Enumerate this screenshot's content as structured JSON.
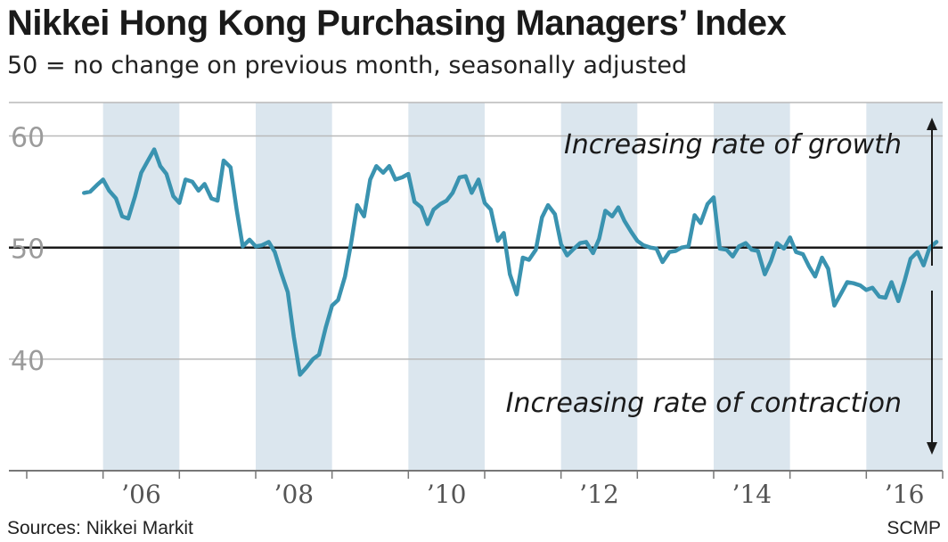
{
  "chart_data": {
    "type": "line",
    "title": "Nikkei Hong Kong Purchasing Managers’ Index",
    "subtitle": "50 = no change on previous month, seasonally adjusted",
    "xlabel": "",
    "ylabel": "",
    "ylim": [
      30,
      63
    ],
    "xlim": [
      2005.0,
      2017.0
    ],
    "y_ticks": [
      60,
      50,
      40
    ],
    "y_tick_labels": [
      "60",
      "50",
      "40"
    ],
    "x_ticks": [
      2006,
      2008,
      2010,
      2012,
      2014,
      2016
    ],
    "x_tick_labels": [
      "’06",
      "’08",
      "’10",
      "’12",
      "’14",
      "’16"
    ],
    "reference_line": 50,
    "shaded_years": [
      2006,
      2008,
      2010,
      2012,
      2014,
      2016
    ],
    "annotations": {
      "growth": "Increasing rate of growth",
      "contraction": "Increasing rate of contraction"
    },
    "colors": {
      "line": "#3a93b0",
      "band": "#dbe6ee",
      "grid": "#b9b9b9",
      "reference": "#1a1a1a",
      "axis": "#777777"
    },
    "series": [
      {
        "name": "Nikkei Hong Kong PMI",
        "points": [
          [
            2005.75,
            54.9
          ],
          [
            2005.83,
            55.0
          ],
          [
            2005.92,
            55.6
          ],
          [
            2006.0,
            56.1
          ],
          [
            2006.08,
            55.1
          ],
          [
            2006.17,
            54.4
          ],
          [
            2006.25,
            52.8
          ],
          [
            2006.33,
            52.6
          ],
          [
            2006.42,
            54.6
          ],
          [
            2006.5,
            56.7
          ],
          [
            2006.58,
            57.7
          ],
          [
            2006.67,
            58.8
          ],
          [
            2006.75,
            57.3
          ],
          [
            2006.83,
            56.6
          ],
          [
            2006.92,
            54.6
          ],
          [
            2007.0,
            54.0
          ],
          [
            2007.08,
            56.1
          ],
          [
            2007.17,
            55.9
          ],
          [
            2007.25,
            55.1
          ],
          [
            2007.33,
            55.7
          ],
          [
            2007.42,
            54.4
          ],
          [
            2007.5,
            54.2
          ],
          [
            2007.58,
            57.8
          ],
          [
            2007.67,
            57.2
          ],
          [
            2007.75,
            53.4
          ],
          [
            2007.83,
            50.1
          ],
          [
            2007.92,
            50.7
          ],
          [
            2008.0,
            50.1
          ],
          [
            2008.08,
            50.2
          ],
          [
            2008.17,
            50.5
          ],
          [
            2008.25,
            49.6
          ],
          [
            2008.33,
            47.8
          ],
          [
            2008.42,
            46.0
          ],
          [
            2008.5,
            42.0
          ],
          [
            2008.58,
            38.6
          ],
          [
            2008.67,
            39.3
          ],
          [
            2008.75,
            40.0
          ],
          [
            2008.83,
            40.4
          ],
          [
            2008.92,
            42.9
          ],
          [
            2009.0,
            44.8
          ],
          [
            2009.08,
            45.3
          ],
          [
            2009.17,
            47.4
          ],
          [
            2009.25,
            50.4
          ],
          [
            2009.33,
            53.8
          ],
          [
            2009.42,
            52.8
          ],
          [
            2009.5,
            56.1
          ],
          [
            2009.58,
            57.3
          ],
          [
            2009.67,
            56.7
          ],
          [
            2009.75,
            57.3
          ],
          [
            2009.83,
            56.1
          ],
          [
            2009.92,
            56.3
          ],
          [
            2010.0,
            56.6
          ],
          [
            2010.08,
            54.1
          ],
          [
            2010.17,
            53.6
          ],
          [
            2010.25,
            52.1
          ],
          [
            2010.33,
            53.4
          ],
          [
            2010.42,
            53.9
          ],
          [
            2010.5,
            54.2
          ],
          [
            2010.58,
            54.9
          ],
          [
            2010.67,
            56.3
          ],
          [
            2010.75,
            56.4
          ],
          [
            2010.83,
            54.9
          ],
          [
            2010.92,
            56.1
          ],
          [
            2011.0,
            54.0
          ],
          [
            2011.08,
            53.4
          ],
          [
            2011.17,
            50.6
          ],
          [
            2011.25,
            51.3
          ],
          [
            2011.33,
            47.6
          ],
          [
            2011.42,
            45.8
          ],
          [
            2011.5,
            49.1
          ],
          [
            2011.58,
            48.9
          ],
          [
            2011.67,
            49.8
          ],
          [
            2011.75,
            52.7
          ],
          [
            2011.83,
            53.8
          ],
          [
            2011.92,
            53.0
          ],
          [
            2012.0,
            50.3
          ],
          [
            2012.08,
            49.3
          ],
          [
            2012.17,
            49.9
          ],
          [
            2012.25,
            50.4
          ],
          [
            2012.33,
            50.5
          ],
          [
            2012.42,
            49.5
          ],
          [
            2012.5,
            50.8
          ],
          [
            2012.58,
            53.3
          ],
          [
            2012.67,
            52.8
          ],
          [
            2012.75,
            53.6
          ],
          [
            2012.83,
            52.4
          ],
          [
            2012.92,
            51.4
          ],
          [
            2013.0,
            50.6
          ],
          [
            2013.08,
            50.2
          ],
          [
            2013.17,
            50.0
          ],
          [
            2013.25,
            49.9
          ],
          [
            2013.33,
            48.7
          ],
          [
            2013.42,
            49.6
          ],
          [
            2013.5,
            49.7
          ],
          [
            2013.58,
            50.0
          ],
          [
            2013.67,
            50.1
          ],
          [
            2013.75,
            52.9
          ],
          [
            2013.83,
            52.2
          ],
          [
            2013.92,
            53.9
          ],
          [
            2014.0,
            54.5
          ],
          [
            2014.08,
            49.9
          ],
          [
            2014.17,
            49.8
          ],
          [
            2014.25,
            49.2
          ],
          [
            2014.33,
            50.1
          ],
          [
            2014.42,
            50.4
          ],
          [
            2014.5,
            49.8
          ],
          [
            2014.58,
            49.7
          ],
          [
            2014.67,
            47.6
          ],
          [
            2014.75,
            48.8
          ],
          [
            2014.83,
            50.4
          ],
          [
            2014.92,
            49.9
          ],
          [
            2015.0,
            50.9
          ],
          [
            2015.08,
            49.6
          ],
          [
            2015.17,
            49.4
          ],
          [
            2015.25,
            48.3
          ],
          [
            2015.33,
            47.4
          ],
          [
            2015.42,
            49.1
          ],
          [
            2015.5,
            48.1
          ],
          [
            2015.58,
            44.8
          ],
          [
            2015.67,
            45.9
          ],
          [
            2015.75,
            46.9
          ],
          [
            2015.83,
            46.8
          ],
          [
            2015.92,
            46.6
          ],
          [
            2016.0,
            46.2
          ],
          [
            2016.08,
            46.4
          ],
          [
            2016.17,
            45.6
          ],
          [
            2016.25,
            45.5
          ],
          [
            2016.33,
            46.9
          ],
          [
            2016.42,
            45.2
          ],
          [
            2016.5,
            47.0
          ],
          [
            2016.58,
            49.0
          ],
          [
            2016.67,
            49.6
          ],
          [
            2016.75,
            48.4
          ],
          [
            2016.83,
            50.0
          ],
          [
            2016.92,
            50.5
          ]
        ]
      }
    ]
  },
  "footer": {
    "source": "Sources: Nikkei Markit",
    "credit": "SCMP"
  }
}
